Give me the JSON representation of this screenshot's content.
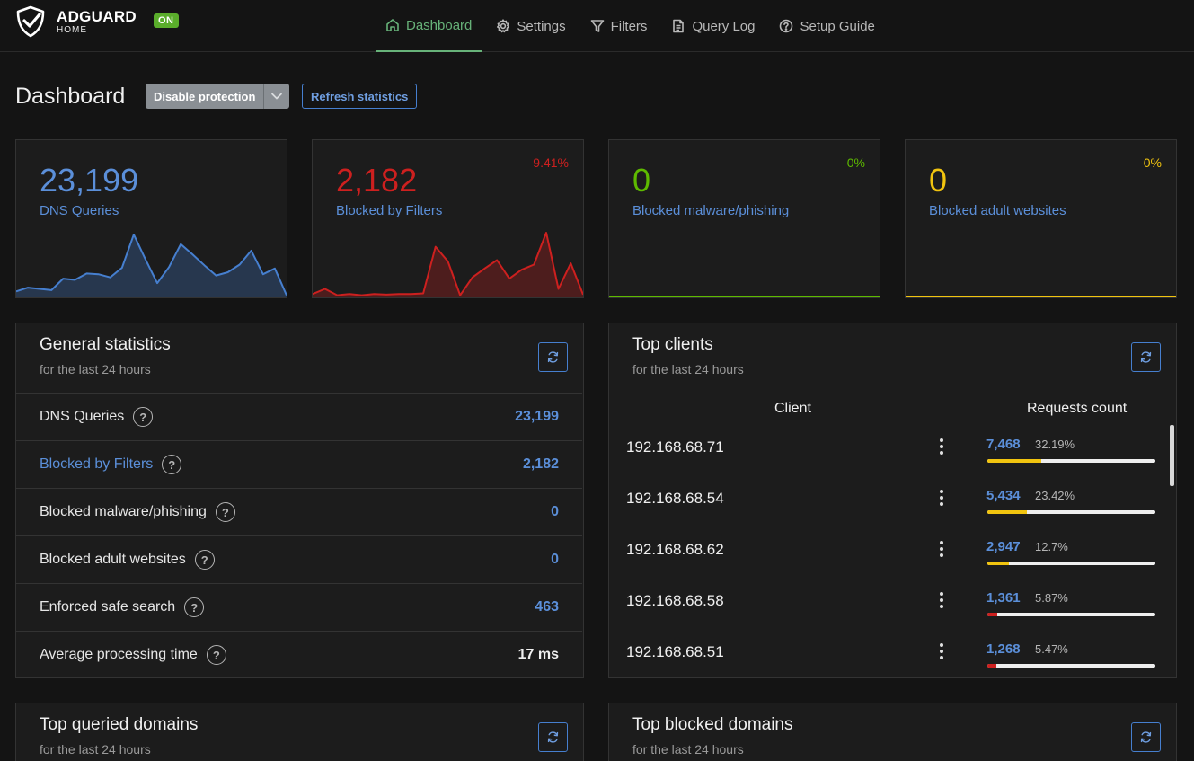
{
  "app": {
    "name": "ADGUARD",
    "sub": "HOME",
    "status": "ON"
  },
  "nav": {
    "items": [
      {
        "label": "Dashboard",
        "icon": "home-icon",
        "active": true
      },
      {
        "label": "Settings",
        "icon": "gear-icon",
        "active": false
      },
      {
        "label": "Filters",
        "icon": "filter-icon",
        "active": false
      },
      {
        "label": "Query Log",
        "icon": "document-icon",
        "active": false
      },
      {
        "label": "Setup Guide",
        "icon": "help-circle-icon",
        "active": false
      }
    ]
  },
  "page": {
    "title": "Dashboard",
    "disable_label": "Disable protection",
    "refresh_label": "Refresh statistics"
  },
  "stats": [
    {
      "value": "23,199",
      "label": "DNS Queries",
      "pct": "",
      "color": "#467fcf",
      "spark": [
        0.08,
        0.14,
        0.12,
        0.1,
        0.28,
        0.26,
        0.36,
        0.35,
        0.3,
        0.45,
        0.97,
        0.58,
        0.21,
        0.46,
        0.82,
        0.66,
        0.49,
        0.33,
        0.38,
        0.5,
        0.72,
        0.35,
        0.44,
        0.02
      ]
    },
    {
      "value": "2,182",
      "label": "Blocked by Filters",
      "pct": "9.41%",
      "color": "#cd201f",
      "spark": [
        0.04,
        0.12,
        0.02,
        0.04,
        0.02,
        0.04,
        0.03,
        0.04,
        0.04,
        0.05,
        0.78,
        0.55,
        0.02,
        0.3,
        0.44,
        0.57,
        0.28,
        0.42,
        0.5,
        1.0,
        0.12,
        0.52,
        0.03
      ]
    },
    {
      "value": "0",
      "label": "Blocked malware/phishing",
      "pct": "0%",
      "color": "#5eba00",
      "spark": []
    },
    {
      "value": "0",
      "label": "Blocked adult websites",
      "pct": "0%",
      "color": "#f1c40f",
      "spark": []
    }
  ],
  "general": {
    "title": "General statistics",
    "subtitle": "for the last 24 hours",
    "rows": [
      {
        "label": "DNS Queries",
        "value": "23,199",
        "link": false
      },
      {
        "label": "Blocked by Filters",
        "value": "2,182",
        "link": true
      },
      {
        "label": "Blocked malware/phishing",
        "value": "0",
        "link": false
      },
      {
        "label": "Blocked adult websites",
        "value": "0",
        "link": false
      },
      {
        "label": "Enforced safe search",
        "value": "463",
        "link": false
      },
      {
        "label": "Average processing time",
        "value": "17 ms",
        "link": false
      }
    ]
  },
  "clients": {
    "title": "Top clients",
    "subtitle": "for the last 24 hours",
    "col_client": "Client",
    "col_requests": "Requests count",
    "rows": [
      {
        "ip": "192.168.68.71",
        "count": "7,468",
        "pct": "32.19%",
        "fraction": 0.3219,
        "bar_color": "#f1c40f"
      },
      {
        "ip": "192.168.68.54",
        "count": "5,434",
        "pct": "23.42%",
        "fraction": 0.2342,
        "bar_color": "#f1c40f"
      },
      {
        "ip": "192.168.68.62",
        "count": "2,947",
        "pct": "12.7%",
        "fraction": 0.127,
        "bar_color": "#f1c40f"
      },
      {
        "ip": "192.168.68.58",
        "count": "1,361",
        "pct": "5.87%",
        "fraction": 0.0587,
        "bar_color": "#cd201f"
      },
      {
        "ip": "192.168.68.51",
        "count": "1,268",
        "pct": "5.47%",
        "fraction": 0.0547,
        "bar_color": "#cd201f"
      }
    ]
  },
  "queried": {
    "title": "Top queried domains",
    "subtitle": "for the last 24 hours"
  },
  "blocked": {
    "title": "Top blocked domains",
    "subtitle": "for the last 24 hours"
  }
}
